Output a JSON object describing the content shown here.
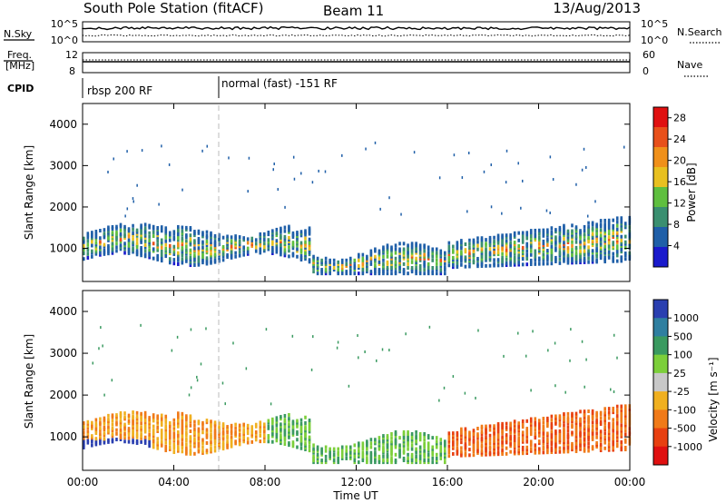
{
  "header": {
    "station": "South Pole Station (fitACF)",
    "beam": "Beam 11",
    "date": "13/Aug/2013"
  },
  "top_panels": {
    "nsky_label": "N.Sky",
    "nsky_top": "10^5",
    "nsky_bottom": "10^0",
    "nsearch_label": "N.Search",
    "nsearch_top": "10^5",
    "nsearch_bottom": "10^0",
    "freq_label": "Freq.",
    "freq_unit": "[MHz]",
    "freq_top": "12",
    "freq_bottom": "8",
    "nave_label": "Nave",
    "nave_top": "60",
    "nave_bottom": "0",
    "cpid_label": "CPID",
    "cpid_1": "rbsp 200 RF",
    "cpid_2": "normal (fast) -151 RF"
  },
  "chart_data": [
    {
      "type": "heatmap",
      "title": "",
      "xlabel": "",
      "ylabel": "Slant Range [km]",
      "x_ticks": [
        "00:00",
        "04:00",
        "08:00",
        "12:00",
        "16:00",
        "20:00",
        "00:00"
      ],
      "y_ticks": [
        1000,
        2000,
        3000,
        4000
      ],
      "ylim": [
        200,
        4500
      ],
      "xlim_hours": [
        0,
        24
      ],
      "colorbar_label": "Power [dB]",
      "colorbar_ticks": [
        4,
        8,
        12,
        16,
        20,
        24,
        28
      ],
      "colorbar_range": [
        0,
        30
      ],
      "colors": [
        "#1a1acc",
        "#1f5fa8",
        "#3a8f70",
        "#5fbf3f",
        "#e8c020",
        "#f0901a",
        "#e8501a",
        "#e01010"
      ]
    },
    {
      "type": "heatmap",
      "title": "",
      "xlabel": "Time UT",
      "ylabel": "Slant Range [km]",
      "x_ticks": [
        "00:00",
        "04:00",
        "08:00",
        "12:00",
        "16:00",
        "20:00",
        "00:00"
      ],
      "y_ticks": [
        1000,
        2000,
        3000,
        4000
      ],
      "ylim": [
        200,
        4500
      ],
      "xlim_hours": [
        0,
        24
      ],
      "colorbar_label": "Velocity [m s⁻¹]",
      "colorbar_ticks": [
        "1000",
        "500",
        "100",
        "25",
        "-25",
        "-100",
        "-500",
        "-1000"
      ],
      "colors": [
        "#2a3fb0",
        "#2f7fa0",
        "#3a9a60",
        "#7ccf3a",
        "#c8c8c8",
        "#f0b020",
        "#f07a18",
        "#e84010",
        "#e01010"
      ]
    }
  ]
}
